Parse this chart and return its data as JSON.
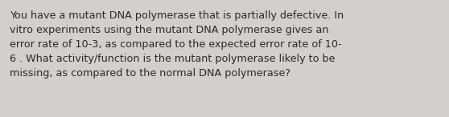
{
  "text": "You have a mutant DNA polymerase that is partially defective. In\nvitro experiments using the mutant DNA polymerase gives an\nerror rate of 10-3, as compared to the expected error rate of 10-\n6 . What activity/function is the mutant polymerase likely to be\nmissing, as compared to the normal DNA polymerase?",
  "background_color": "#d3cfca",
  "text_color": "#2a2a2a",
  "font_size": 9.2,
  "font_family": "DejaVu Sans",
  "font_weight": "normal"
}
